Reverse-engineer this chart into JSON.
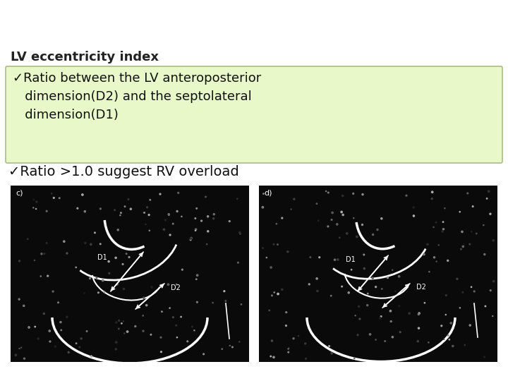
{
  "title": "LV eccentricity index",
  "title_color": "#222222",
  "title_fontsize": 13,
  "bullet1_line1": "✓Ratio between the LV anteroposterior",
  "bullet1_line2": "   dimension(D2) and the septolateral",
  "bullet1_line3": "   dimension(D1)",
  "bullet2": "✓Ratio >1.0 suggest RV overload",
  "box_facecolor": "#e8f8c8",
  "box_edgecolor": "#aabb88",
  "bg_color": "#ffffff",
  "text_color": "#111111",
  "bullet_fontsize": 13,
  "bullet2_fontsize": 14,
  "image_placeholder_color": "#0a0a0a"
}
